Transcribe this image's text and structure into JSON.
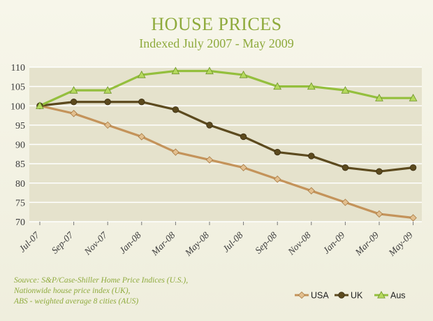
{
  "chart_data": {
    "type": "line",
    "title": "HOUSE PRICES",
    "subtitle": "Indexed July 2007 - May 2009",
    "categories": [
      "Jul-07",
      "Sep-07",
      "Nov-07",
      "Jan-08",
      "Mar-08",
      "May-08",
      "Jul-08",
      "Sep-08",
      "Nov-08",
      "Jan-09",
      "Mar-09",
      "May-09"
    ],
    "ylim": [
      70,
      110
    ],
    "yticks": [
      70,
      75,
      80,
      85,
      90,
      95,
      100,
      105,
      110
    ],
    "grid": true,
    "legend_position": "bottom-right",
    "series": [
      {
        "name": "USA",
        "color": "#c4935a",
        "marker": "diamond",
        "values": [
          100,
          98,
          95,
          92,
          88,
          86,
          84,
          81,
          78,
          75,
          72,
          71
        ]
      },
      {
        "name": "UK",
        "color": "#5c4a1e",
        "marker": "circle",
        "values": [
          100,
          101,
          101,
          101,
          99,
          95,
          92,
          88,
          87,
          84,
          83,
          84
        ]
      },
      {
        "name": "Aus",
        "color": "#94bf3d",
        "marker": "triangle",
        "values": [
          100,
          104,
          104,
          108,
          109,
          109,
          108,
          105,
          105,
          104,
          102,
          102
        ]
      }
    ],
    "plot_background": "#e5e2cc",
    "grid_color": "#ffffff"
  },
  "source_lines": [
    "Souvce: S&P/Case-Shiller Home Price Indices (U.S.),",
    "Nationwide house price index (UK),",
    "ABS - weighted average 8 cities (AUS)"
  ]
}
